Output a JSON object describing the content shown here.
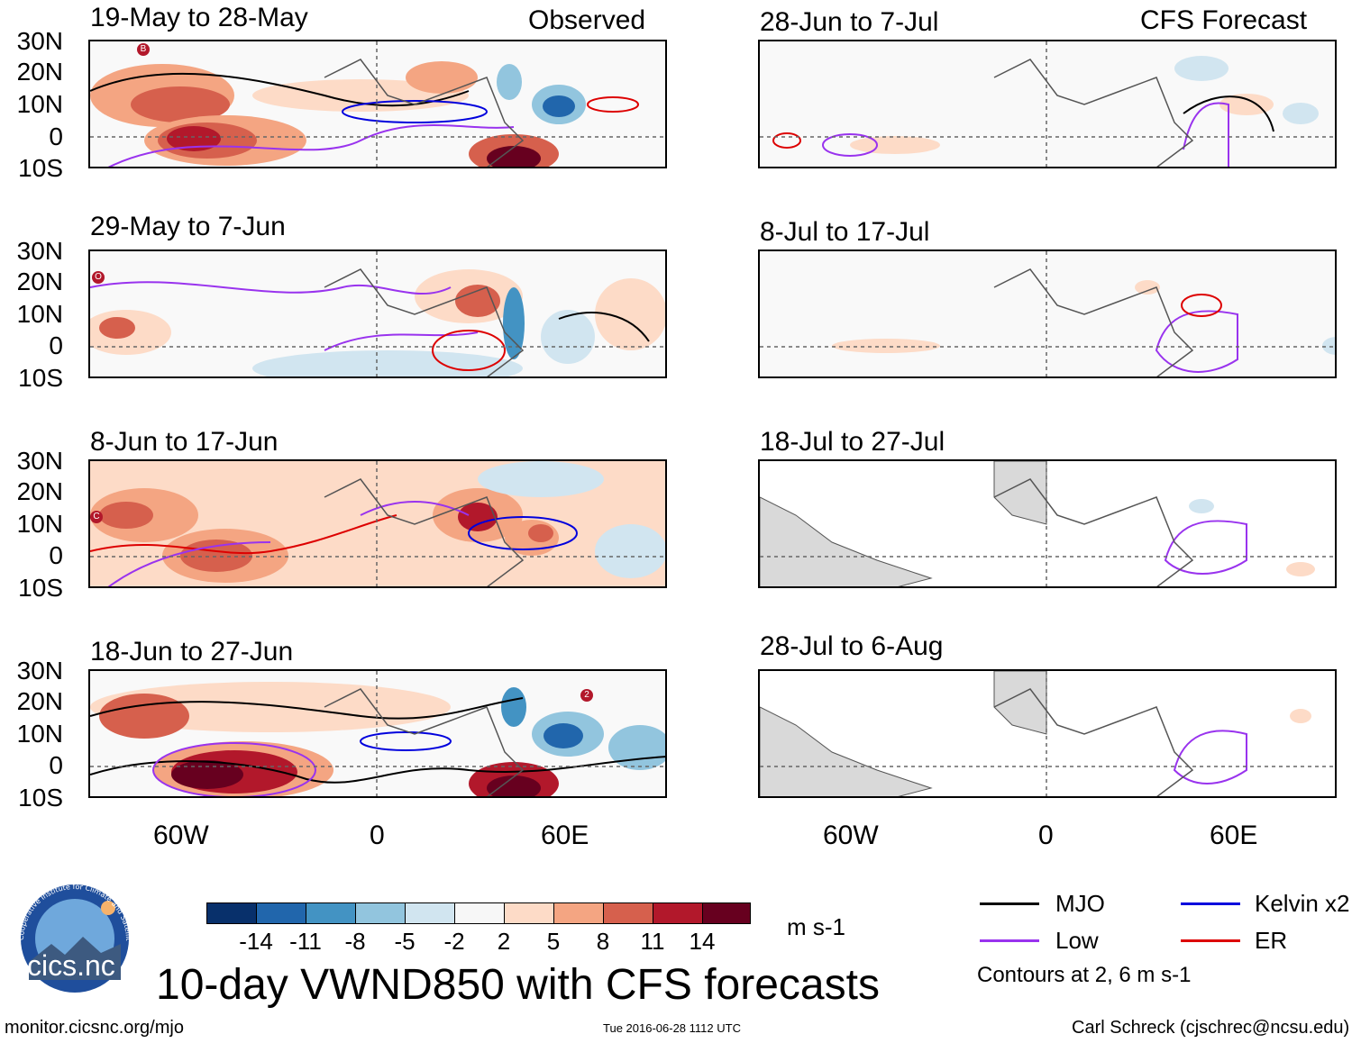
{
  "columns": {
    "observed_title": "Observed",
    "forecast_title": "CFS Forecast"
  },
  "observed_panels": [
    {
      "label": "19-May to 28-May"
    },
    {
      "label": "29-May to 7-Jun"
    },
    {
      "label": "8-Jun to 17-Jun"
    },
    {
      "label": "18-Jun to 27-Jun"
    }
  ],
  "forecast_panels": [
    {
      "label": "28-Jun to 7-Jul"
    },
    {
      "label": "8-Jul to 17-Jul"
    },
    {
      "label": "18-Jul to 27-Jul"
    },
    {
      "label": "28-Jul to 6-Aug"
    }
  ],
  "latitude_labels": [
    "30N",
    "20N",
    "10N",
    "0",
    "10S"
  ],
  "longitude_labels": [
    "60W",
    "0",
    "60E"
  ],
  "colorbar": {
    "colors": [
      "#08306b",
      "#2166ac",
      "#4393c3",
      "#92c5de",
      "#d1e5f0",
      "#f7f7f7",
      "#fddbc7",
      "#f4a582",
      "#d6604d",
      "#b2182b",
      "#67001f"
    ],
    "tick_labels": [
      "-14",
      "-11",
      "-8",
      "-5",
      "-2",
      "2",
      "5",
      "8",
      "11",
      "14"
    ],
    "units": "m s-1"
  },
  "legend": {
    "items": [
      {
        "label": "MJO",
        "color": "#000000"
      },
      {
        "label": "Kelvin x2",
        "color": "#0000dd"
      },
      {
        "label": "Low",
        "color": "#9933ee"
      },
      {
        "label": "ER",
        "color": "#dd0000"
      }
    ],
    "contours_note": "Contours at 2, 6 m s-1"
  },
  "logo": {
    "text": "cics.nc",
    "ring_text": "Cooperative Institute for Climate and Satellites"
  },
  "main_title": "10-day VWND850 with CFS forecasts",
  "footer": {
    "left": "monitor.cicsnc.org/mjo",
    "center": "Tue 2016-06-28 1112 UTC",
    "right": "Carl Schreck (cjschrec@ncsu.edu)"
  },
  "storm_markers": [
    {
      "panel": "observed-1",
      "text": "B"
    },
    {
      "panel": "observed-2",
      "text": "O"
    },
    {
      "panel": "observed-3",
      "text": "C"
    },
    {
      "panel": "observed-4",
      "text": "2"
    }
  ]
}
